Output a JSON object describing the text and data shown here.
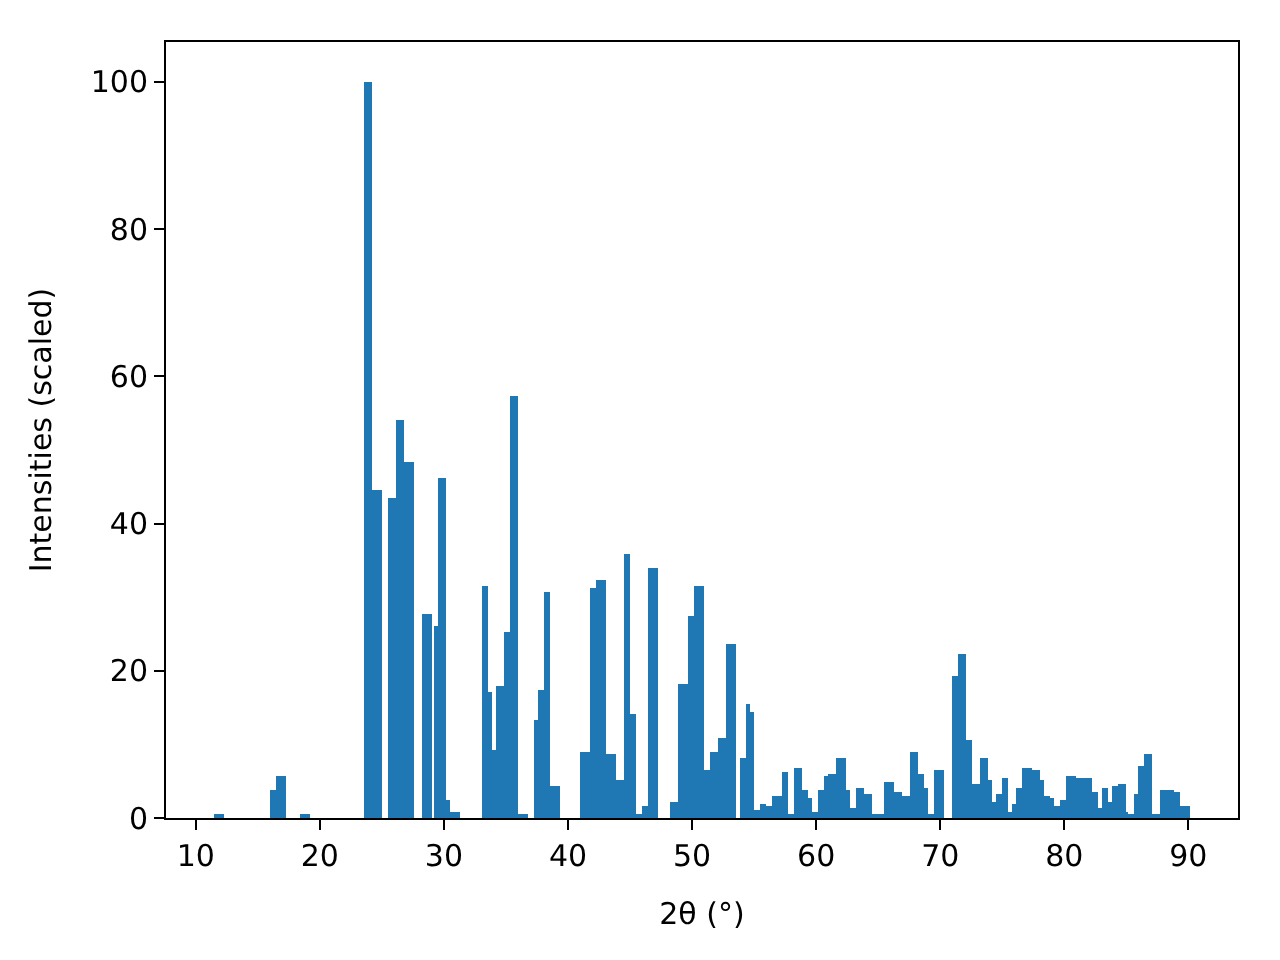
{
  "chart_data": {
    "type": "bar",
    "xlabel": "2θ (°)",
    "ylabel": "Intensities (scaled)",
    "color": "#1f77b4",
    "x": [
      11.9,
      16.4,
      16.9,
      18.8,
      23.9,
      24.6,
      25.9,
      26.5,
      27.2,
      28.6,
      29.6,
      30.0,
      30.6,
      30.9,
      33.5,
      34.0,
      34.3,
      34.6,
      35.2,
      35.8,
      36.4,
      37.6,
      38.0,
      38.5,
      38.9,
      41.3,
      42.1,
      42.6,
      43.4,
      44.2,
      44.9,
      45.4,
      45.9,
      46.4,
      46.9,
      48.7,
      49.2,
      50.0,
      50.5,
      51.3,
      51.9,
      52.5,
      53.2,
      54.3,
      54.7,
      55.1,
      55.3,
      55.8,
      56.3,
      56.9,
      57.7,
      58.2,
      58.6,
      59.3,
      59.8,
      60.1,
      60.5,
      61.1,
      61.4,
      62.0,
      62.8,
      63.2,
      63.6,
      64.3,
      64.9,
      65.2,
      65.9,
      66.7,
      67.3,
      67.9,
      68.6,
      69.1,
      69.4,
      69.9,
      71.3,
      71.8,
      72.5,
      73.0,
      73.6,
      74.3,
      74.6,
      74.9,
      75.3,
      75.9,
      76.2,
      76.5,
      77.0,
      77.8,
      78.4,
      78.8,
      79.3,
      79.6,
      80.0,
      80.5,
      81.3,
      82.0,
      82.7,
      83.1,
      83.5,
      83.9,
      84.2,
      84.7,
      85.3,
      85.5,
      86.0,
      86.4,
      86.9,
      87.4,
      88.1,
      88.7,
      89.2,
      89.8
    ],
    "values": [
      0.3,
      3.8,
      5.7,
      0.5,
      100,
      44.6,
      43.5,
      54.1,
      48.4,
      27.7,
      26.1,
      46.2,
      2.4,
      0.8,
      31.5,
      17.1,
      9.2,
      17.9,
      25.3,
      57.3,
      0.3,
      13.3,
      17.4,
      30.7,
      4.3,
      9.0,
      31.3,
      32.3,
      8.7,
      5.2,
      35.9,
      14.1,
      0.5,
      1.6,
      34.0,
      2.2,
      18.2,
      27.4,
      31.5,
      6.5,
      9.0,
      10.9,
      23.6,
      8.2,
      15.5,
      14.4,
      1.1,
      1.9,
      1.6,
      3.0,
      6.2,
      0.3,
      6.8,
      3.8,
      2.7,
      0.8,
      3.8,
      5.7,
      6.0,
      8.2,
      3.8,
      1.4,
      4.1,
      3.3,
      0.3,
      0.5,
      4.9,
      3.5,
      3.0,
      9.0,
      6.0,
      4.1,
      0.3,
      6.5,
      19.3,
      22.3,
      10.6,
      4.6,
      8.2,
      5.2,
      2.2,
      3.3,
      5.4,
      0.8,
      1.9,
      4.1,
      6.8,
      6.5,
      5.2,
      3.0,
      2.7,
      1.6,
      2.5,
      5.7,
      5.4,
      5.4,
      3.5,
      1.4,
      4.1,
      2.2,
      4.3,
      4.6,
      0.8,
      0.3,
      3.3,
      7.0,
      8.7,
      0.3,
      3.8,
      3.8,
      3.5,
      1.6
    ],
    "xlim": [
      7.6,
      94
    ],
    "ylim": [
      0,
      105.4
    ],
    "xticks": [
      10,
      20,
      30,
      40,
      50,
      60,
      70,
      80,
      90
    ],
    "yticks": [
      0,
      20,
      40,
      60,
      80,
      100
    ]
  }
}
